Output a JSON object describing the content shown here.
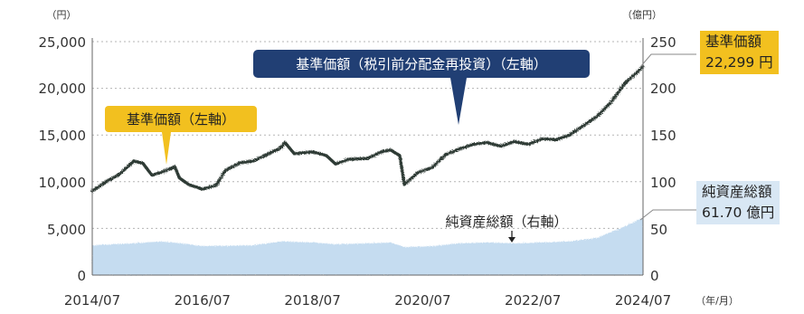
{
  "chart_data": {
    "type": "line",
    "y_left": {
      "unit": "（円）",
      "ylim": [
        0,
        25000
      ],
      "ticks": [
        "0",
        "5,000",
        "10,000",
        "15,000",
        "20,000",
        "25,000"
      ]
    },
    "y_right": {
      "unit": "（億円）",
      "ylim": [
        0,
        250
      ],
      "ticks": [
        "0",
        "50",
        "100",
        "150",
        "200",
        "250"
      ]
    },
    "x_ticks": [
      "2014/07",
      "2016/07",
      "2018/07",
      "2020/07",
      "2022/07",
      "2024/07"
    ],
    "x_unit": "（年/月）",
    "grid": true,
    "series": [
      {
        "name": "基準価額（税引前分配金再投資）",
        "axis": "left",
        "style": "line",
        "color": "#2f3a34",
        "x": [
          "2014/07",
          "2014/10",
          "2015/01",
          "2015/04",
          "2015/06",
          "2015/08",
          "2015/10",
          "2016/01",
          "2016/02",
          "2016/04",
          "2016/07",
          "2016/10",
          "2016/12",
          "2017/03",
          "2017/06",
          "2017/09",
          "2017/12",
          "2018/01",
          "2018/03",
          "2018/07",
          "2018/10",
          "2018/12",
          "2019/03",
          "2019/07",
          "2019/10",
          "2019/12",
          "2020/02",
          "2020/03",
          "2020/06",
          "2020/09",
          "2020/12",
          "2021/03",
          "2021/06",
          "2021/09",
          "2021/12",
          "2022/03",
          "2022/06",
          "2022/09",
          "2022/12",
          "2023/03",
          "2023/06",
          "2023/09",
          "2023/12",
          "2024/03",
          "2024/07"
        ],
        "values": [
          9000,
          10000,
          10800,
          12200,
          12000,
          10700,
          11000,
          11600,
          10400,
          9700,
          9200,
          9600,
          11200,
          12000,
          12200,
          12900,
          13600,
          14200,
          13000,
          13200,
          12800,
          11900,
          12400,
          12500,
          13200,
          13400,
          12800,
          9700,
          11000,
          11500,
          12900,
          13500,
          14000,
          14200,
          13800,
          14300,
          14000,
          14600,
          14500,
          15000,
          16000,
          17000,
          18500,
          20500,
          22300
        ]
      },
      {
        "name": "純資産総額",
        "axis": "right",
        "style": "area",
        "color": "#c5dcf0",
        "x": [
          "2014/07",
          "2015/04",
          "2015/10",
          "2016/04",
          "2016/07",
          "2017/06",
          "2017/12",
          "2018/07",
          "2018/12",
          "2019/07",
          "2019/12",
          "2020/03",
          "2020/09",
          "2021/03",
          "2021/09",
          "2022/03",
          "2022/09",
          "2023/03",
          "2023/09",
          "2024/03",
          "2024/07"
        ],
        "values": [
          32,
          34,
          36,
          33,
          31,
          32,
          36,
          35,
          33,
          34,
          35,
          30,
          31,
          34,
          35,
          34,
          35,
          36,
          40,
          52,
          61.7
        ]
      }
    ],
    "annotations": [
      {
        "text": "基準価額（税引前分配金再投資）（左軸）",
        "x": "2021/01",
        "y": 14800,
        "style": "navy"
      },
      {
        "text": "基準価額（左軸）",
        "x": "2015/10",
        "y": 11900,
        "style": "gold"
      },
      {
        "text": "純資産総額（右軸）",
        "x": "2022/03",
        "y": 36,
        "style": "plain"
      }
    ],
    "end_labels": {
      "nav": {
        "title": "基準価額",
        "value": "22,299 円"
      },
      "assets": {
        "title": "純資産総額",
        "value": "61.70 億円"
      }
    }
  },
  "colors": {
    "line": "#2f3a34",
    "area": "#c5dcf0",
    "gold": "#f2c01f",
    "navy": "#213f74",
    "grid": "#b5b5b5",
    "assets_label_bg": "#d8e7f4"
  }
}
